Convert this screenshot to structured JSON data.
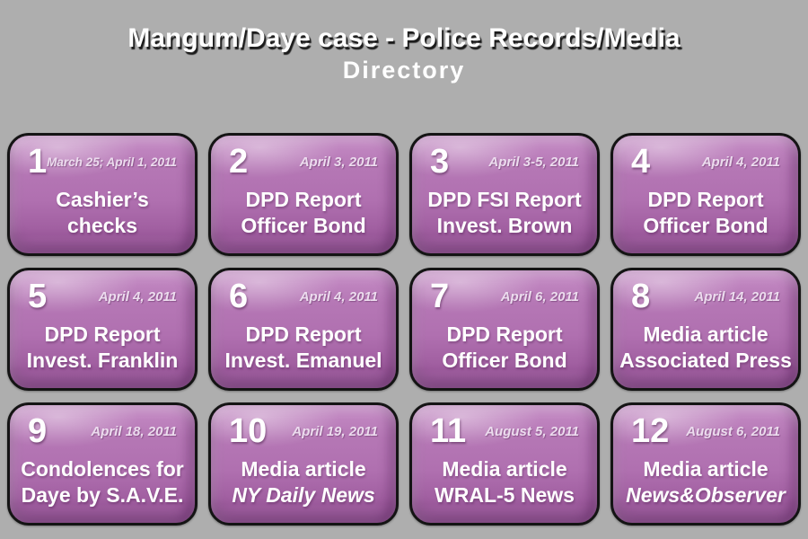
{
  "page": {
    "title_line1": "Mangum/Daye case - Police Records/Media",
    "title_line2": "Directory"
  },
  "colors": {
    "background": "#aeaeae",
    "button_purple": "#b272b2",
    "button_highlight": "#c68dc6",
    "button_border": "#141414",
    "date_text": "#ecdcee",
    "title_text": "#ffffff"
  },
  "buttons": [
    {
      "number": "1",
      "date": "March 25; April 1, 2011",
      "lines": [
        "Cashier’s",
        "checks"
      ],
      "italic_line2": false
    },
    {
      "number": "2",
      "date": "April 3, 2011",
      "lines": [
        "DPD Report",
        "Officer Bond"
      ],
      "italic_line2": false
    },
    {
      "number": "3",
      "date": "April 3-5, 2011",
      "lines": [
        "DPD FSI Report",
        "Invest. Brown"
      ],
      "italic_line2": false
    },
    {
      "number": "4",
      "date": "April 4, 2011",
      "lines": [
        "DPD Report",
        "Officer Bond"
      ],
      "italic_line2": false
    },
    {
      "number": "5",
      "date": "April 4, 2011",
      "lines": [
        "DPD Report",
        "Invest. Franklin"
      ],
      "italic_line2": false
    },
    {
      "number": "6",
      "date": "April 4, 2011",
      "lines": [
        "DPD Report",
        "Invest. Emanuel"
      ],
      "italic_line2": false
    },
    {
      "number": "7",
      "date": "April 6, 2011",
      "lines": [
        "DPD Report",
        "Officer Bond"
      ],
      "italic_line2": false
    },
    {
      "number": "8",
      "date": "April 14, 2011",
      "lines": [
        "Media article",
        "Associated Press"
      ],
      "italic_line2": false
    },
    {
      "number": "9",
      "date": "April 18, 2011",
      "lines": [
        "Condolences for",
        "Daye by S.A.V.E."
      ],
      "italic_line2": false
    },
    {
      "number": "10",
      "date": "April 19, 2011",
      "lines": [
        "Media article",
        "NY Daily News"
      ],
      "italic_line2": true
    },
    {
      "number": "11",
      "date": "August 5, 2011",
      "lines": [
        "Media article",
        "WRAL-5 News"
      ],
      "italic_line2": false
    },
    {
      "number": "12",
      "date": "August 6, 2011",
      "lines": [
        "Media article",
        "News&Observer"
      ],
      "italic_line2": true
    }
  ]
}
